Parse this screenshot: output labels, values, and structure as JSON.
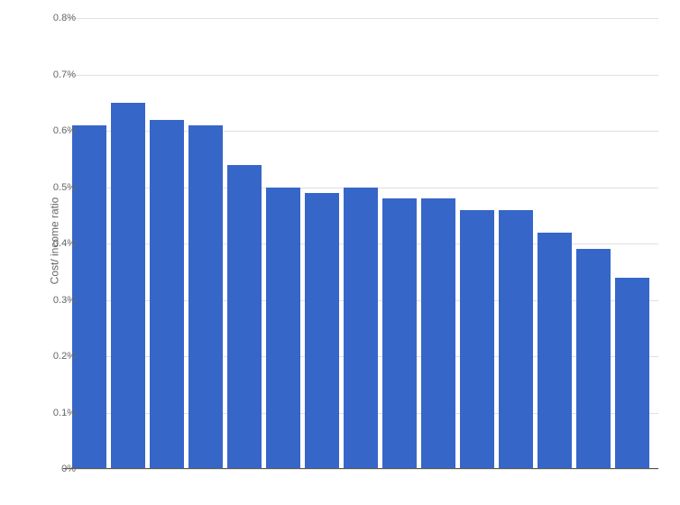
{
  "chart": {
    "type": "bar",
    "ylabel": "Cost/ income ratio",
    "values": [
      0.61,
      0.65,
      0.62,
      0.61,
      0.54,
      0.5,
      0.49,
      0.5,
      0.48,
      0.48,
      0.46,
      0.46,
      0.42,
      0.39,
      0.34
    ],
    "bar_color": "#3766c9",
    "background_color": "#ffffff",
    "grid_color": "#e0e0e0",
    "axis_color": "#555555",
    "text_color": "#666666",
    "ylim": [
      0,
      0.8
    ],
    "ytick_step": 0.1,
    "ytick_labels": [
      "0%",
      "0.1%",
      "0.2%",
      "0.3%",
      "0.4%",
      "0.5%",
      "0.6%",
      "0.7%",
      "0.8%"
    ],
    "label_fontsize": 12,
    "tick_fontsize": 11,
    "bar_count": 15
  }
}
